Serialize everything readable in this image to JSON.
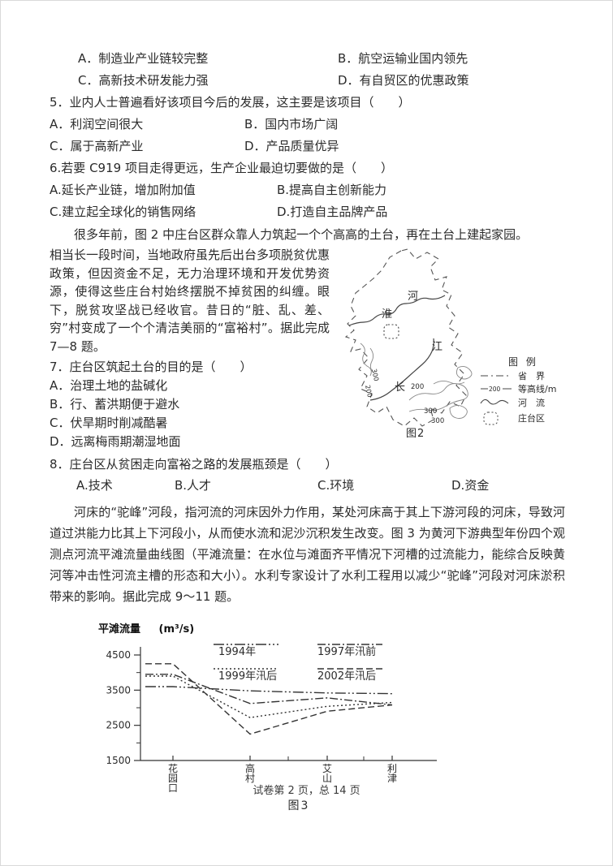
{
  "top_options": {
    "a": "A．制造业产业链较完整",
    "b": "B．航空运输业国内领先",
    "c": "C．高新技术研发能力强",
    "d": "D．有自贸区的优惠政策"
  },
  "q5": {
    "stem": "5．业内人士普遍看好该项目今后的发展，这主要是该项目（　　）",
    "a": "A．利润空间很大",
    "b": "B．国内市场广阔",
    "c": "C．属于高新产业",
    "d": "D．产品质量优异"
  },
  "q6": {
    "stem": "6.若要 C919 项目走得更远，生产企业最迫切要做的是（　　）",
    "a": "A.延长产业链，增加附加值",
    "b": "B.提高自主创新能力",
    "c": "C.建立起全球化的销售网络",
    "d": "D.打造自主品牌产品"
  },
  "passage1": {
    "first_line": "很多年前，图 2 中庄台区群众靠人力筑起一个个高高的土台，再在土台上建起家园。",
    "body": "相当长一段时间，当地政府虽先后出台多项脱贫优惠政策，但因资金不足，无力治理环境和开发优势资源，使得这些庄台村始终摆脱不掉贫困的纠缠。眼下，脱贫攻坚战已经收官。昔日的“脏、乱、差、穷”村变成了一个个清洁美丽的“富裕村”。据此完成 7—8 题。"
  },
  "q7": {
    "stem": "7．庄台区筑起土台的目的是（　　）",
    "a": "A．治理土地的盐碱化",
    "b": "B．行、蓄洪期便于避水",
    "c": "C．伏旱期时削减酷暑",
    "d": "D．远离梅雨期潮湿地面"
  },
  "q8": {
    "stem": "8．庄台区从贫困走向富裕之路的发展瓶颈是（　　）",
    "a": "A.技术",
    "b": "B.人才",
    "c": "C.环境",
    "d": "D.资金"
  },
  "passage2": "河床的“驼峰”河段，指河流的河床因外力作用，某处河床高于其上下游河段的河床，导致河道过洪能力比其上下河段小，从而使水流和泥沙沉积发生改变。图 3 为黄河下游典型年份四个观测点河流平滩流量曲线图（平滩流量：在水位与滩面齐平情况下河槽的过流能力，能综合反映黄河等冲击性河流主槽的形态和大小）。水利专家设计了水利工程用以减少“驼峰”河段对河床淤积带来的影响。据此完成 9～11 题。",
  "map": {
    "caption": "图2",
    "labels": {
      "he": "河",
      "huai": "淮",
      "jiang": "江",
      "chang": "长"
    },
    "contours": [
      "200",
      "300",
      "200",
      "300",
      "300"
    ],
    "legend": {
      "title": "图 例",
      "sample_contour_value": "200",
      "items": [
        "省　界",
        "等高线/m",
        "河　流",
        "庄台区"
      ]
    }
  },
  "chart_data": {
    "type": "line",
    "caption": "图3",
    "ylabel": "平滩流量",
    "unit": "(m³/s)",
    "categories": [
      "花园口",
      "高村",
      "艾山",
      "利津"
    ],
    "series": [
      {
        "name": "1994年",
        "style": "dash-dot-dot",
        "values": [
          3600,
          3480,
          3420,
          3400
        ]
      },
      {
        "name": "1997年汛前",
        "style": "dash-dot",
        "values": [
          3950,
          3120,
          3280,
          3080
        ]
      },
      {
        "name": "1999年汛后",
        "style": "dotted",
        "values": [
          3900,
          2720,
          3040,
          3150
        ]
      },
      {
        "name": "2002年汛后",
        "style": "dashed",
        "values": [
          4250,
          2250,
          2900,
          3080
        ]
      }
    ],
    "ylim": [
      1500,
      4800
    ],
    "yticks": [
      1500,
      2500,
      3500,
      4500
    ],
    "grid": false,
    "legend_position": "top-inside"
  },
  "footer": "试卷第 2 页，总 14 页"
}
